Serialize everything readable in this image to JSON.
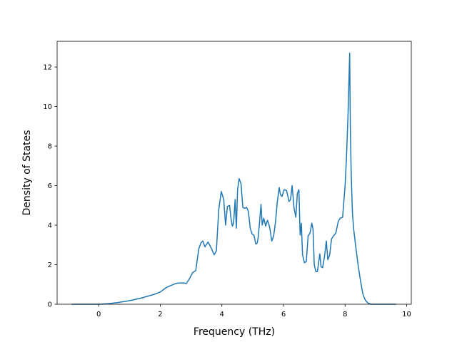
{
  "chart_data": {
    "type": "line",
    "title": "",
    "xlabel": "Frequency (THz)",
    "ylabel": "Density of States",
    "xlim": [
      -1.35,
      10.15
    ],
    "ylim": [
      0,
      13.3
    ],
    "xticks": [
      0,
      2,
      4,
      6,
      8,
      10
    ],
    "yticks": [
      0,
      2,
      4,
      6,
      8,
      10,
      12
    ],
    "grid": false,
    "legend": "none",
    "colors": {
      "line": "#1f77b4",
      "axes": "#000000",
      "background": "#ffffff"
    },
    "series": [
      {
        "x": [
          -0.88,
          -0.5,
          0.0,
          0.3,
          0.6,
          1.0,
          1.4,
          1.8,
          2.0,
          2.2,
          2.35,
          2.5,
          2.6,
          2.75,
          2.85,
          2.95,
          3.05,
          3.15,
          3.25,
          3.32,
          3.38,
          3.45,
          3.55,
          3.65,
          3.75,
          3.82,
          3.9,
          3.98,
          4.06,
          4.12,
          4.18,
          4.25,
          4.3,
          4.34,
          4.38,
          4.43,
          4.47,
          4.51,
          4.56,
          4.62,
          4.68,
          4.74,
          4.8,
          4.86,
          4.92,
          4.98,
          5.04,
          5.1,
          5.15,
          5.18,
          5.22,
          5.27,
          5.31,
          5.36,
          5.42,
          5.48,
          5.55,
          5.62,
          5.68,
          5.74,
          5.8,
          5.86,
          5.9,
          5.95,
          6.02,
          6.1,
          6.18,
          6.23,
          6.28,
          6.34,
          6.4,
          6.45,
          6.5,
          6.54,
          6.58,
          6.62,
          6.68,
          6.74,
          6.8,
          6.86,
          6.92,
          6.96,
          7.0,
          7.05,
          7.1,
          7.18,
          7.22,
          7.27,
          7.33,
          7.39,
          7.44,
          7.5,
          7.56,
          7.62,
          7.7,
          7.78,
          7.84,
          7.92,
          8.0,
          8.05,
          8.1,
          8.15,
          8.17,
          8.2,
          8.24,
          8.28,
          8.34,
          8.42,
          8.5,
          8.58,
          8.66,
          8.75,
          8.85,
          9.0,
          9.3,
          9.65
        ],
        "y": [
          0.0,
          0.0,
          0.0,
          0.03,
          0.08,
          0.18,
          0.32,
          0.5,
          0.62,
          0.85,
          0.95,
          1.05,
          1.07,
          1.08,
          1.05,
          1.3,
          1.6,
          1.7,
          2.8,
          3.1,
          3.2,
          2.9,
          3.15,
          2.85,
          2.5,
          2.7,
          4.8,
          5.7,
          5.3,
          4.0,
          4.95,
          5.0,
          4.3,
          3.95,
          4.1,
          5.3,
          3.85,
          5.8,
          6.35,
          6.1,
          4.9,
          4.85,
          4.9,
          4.7,
          3.85,
          3.55,
          3.5,
          3.05,
          3.1,
          3.4,
          4.1,
          5.05,
          4.0,
          4.35,
          3.95,
          4.25,
          3.9,
          3.2,
          3.45,
          4.15,
          5.2,
          5.9,
          5.55,
          5.45,
          5.8,
          5.75,
          5.2,
          5.3,
          6.0,
          4.9,
          4.4,
          5.6,
          5.8,
          3.5,
          4.1,
          2.5,
          2.1,
          2.15,
          3.45,
          3.6,
          4.1,
          3.8,
          2.0,
          1.65,
          1.65,
          2.55,
          1.9,
          1.85,
          2.4,
          3.2,
          2.25,
          2.5,
          3.3,
          3.45,
          3.6,
          4.2,
          4.35,
          4.4,
          6.0,
          7.6,
          9.8,
          12.7,
          9.0,
          6.5,
          4.6,
          3.8,
          3.0,
          2.0,
          1.2,
          0.5,
          0.2,
          0.05,
          0.0,
          0.0,
          0.0,
          0.0
        ]
      }
    ]
  }
}
